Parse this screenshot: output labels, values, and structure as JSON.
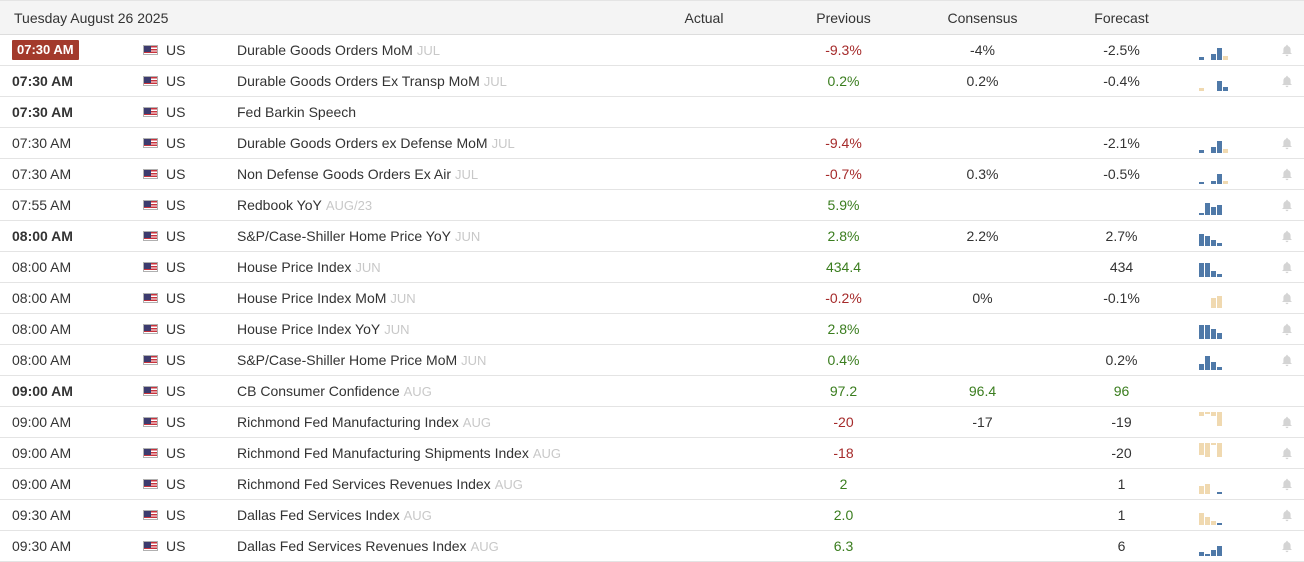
{
  "header": {
    "date": "Tuesday August 26 2025",
    "actual": "Actual",
    "previous": "Previous",
    "consensus": "Consensus",
    "forecast": "Forecast"
  },
  "colors": {
    "negative": "#a52a2a",
    "positive": "#3a7d1e",
    "bar_blue": "#4f79a8",
    "bar_tan": "#f0d9b0",
    "highlight_time": "#a33a2c"
  },
  "rows": [
    {
      "time": "07:30 AM",
      "style": "badge",
      "country": "US",
      "event": "Durable Goods Orders MoM",
      "ref": "JUL",
      "actual": "",
      "previous": "-9.3%",
      "prev_tone": "red",
      "consensus": "-4%",
      "forecast": "-2.5%",
      "bars": [
        {
          "h": 3,
          "c": "b"
        },
        {
          "h": 0,
          "c": "n"
        },
        {
          "h": 6,
          "c": "b"
        },
        {
          "h": 12,
          "c": "b"
        },
        {
          "h": 4,
          "c": "t"
        }
      ],
      "bell": true
    },
    {
      "time": "07:30 AM",
      "style": "bold",
      "country": "US",
      "event": "Durable Goods Orders Ex Transp MoM",
      "ref": "JUL",
      "actual": "",
      "previous": "0.2%",
      "prev_tone": "green",
      "consensus": "0.2%",
      "forecast": "-0.4%",
      "bars": [
        {
          "h": 3,
          "c": "t"
        },
        {
          "h": 0,
          "c": "n"
        },
        {
          "h": 0,
          "c": "n"
        },
        {
          "h": 10,
          "c": "b"
        },
        {
          "h": 4,
          "c": "b"
        }
      ],
      "bell": true
    },
    {
      "time": "07:30 AM",
      "style": "bold",
      "country": "US",
      "event": "Fed Barkin Speech",
      "ref": "",
      "actual": "",
      "previous": "",
      "prev_tone": "neutral",
      "consensus": "",
      "forecast": "",
      "bars": [],
      "bell": false
    },
    {
      "time": "07:30 AM",
      "style": "normal",
      "country": "US",
      "event": "Durable Goods Orders ex Defense MoM",
      "ref": "JUL",
      "actual": "",
      "previous": "-9.4%",
      "prev_tone": "red",
      "consensus": "",
      "forecast": "-2.1%",
      "bars": [
        {
          "h": 3,
          "c": "b"
        },
        {
          "h": 0,
          "c": "n"
        },
        {
          "h": 6,
          "c": "b"
        },
        {
          "h": 12,
          "c": "b"
        },
        {
          "h": 4,
          "c": "t"
        }
      ],
      "bell": true
    },
    {
      "time": "07:30 AM",
      "style": "normal",
      "country": "US",
      "event": "Non Defense Goods Orders Ex Air",
      "ref": "JUL",
      "actual": "",
      "previous": "-0.7%",
      "prev_tone": "red",
      "consensus": "0.3%",
      "forecast": "-0.5%",
      "bars": [
        {
          "h": 2,
          "c": "b"
        },
        {
          "h": 0,
          "c": "n"
        },
        {
          "h": 3,
          "c": "b"
        },
        {
          "h": 10,
          "c": "b"
        },
        {
          "h": 3,
          "c": "t"
        }
      ],
      "bell": true
    },
    {
      "time": "07:55 AM",
      "style": "normal",
      "country": "US",
      "event": "Redbook YoY",
      "ref": "AUG/23",
      "actual": "",
      "previous": "5.9%",
      "prev_tone": "green",
      "consensus": "",
      "forecast": "",
      "bars": [
        {
          "h": 2,
          "c": "b"
        },
        {
          "h": 12,
          "c": "b"
        },
        {
          "h": 8,
          "c": "b"
        },
        {
          "h": 10,
          "c": "b"
        }
      ],
      "bell": true
    },
    {
      "time": "08:00 AM",
      "style": "bold",
      "country": "US",
      "event": "S&P/Case-Shiller Home Price YoY",
      "ref": "JUN",
      "actual": "",
      "previous": "2.8%",
      "prev_tone": "green",
      "consensus": "2.2%",
      "forecast": "2.7%",
      "bars": [
        {
          "h": 12,
          "c": "b"
        },
        {
          "h": 10,
          "c": "b"
        },
        {
          "h": 6,
          "c": "b"
        },
        {
          "h": 3,
          "c": "b"
        }
      ],
      "bell": true
    },
    {
      "time": "08:00 AM",
      "style": "normal",
      "country": "US",
      "event": "House Price Index",
      "ref": "JUN",
      "actual": "",
      "previous": "434.4",
      "prev_tone": "green",
      "consensus": "",
      "forecast": "434",
      "bars": [
        {
          "h": 14,
          "c": "b"
        },
        {
          "h": 14,
          "c": "b"
        },
        {
          "h": 6,
          "c": "b"
        },
        {
          "h": 3,
          "c": "b"
        }
      ],
      "bell": true
    },
    {
      "time": "08:00 AM",
      "style": "normal",
      "country": "US",
      "event": "House Price Index MoM",
      "ref": "JUN",
      "actual": "",
      "previous": "-0.2%",
      "prev_tone": "red",
      "consensus": "0%",
      "forecast": "-0.1%",
      "bars": [
        {
          "h": 0,
          "c": "n"
        },
        {
          "h": 0,
          "c": "n"
        },
        {
          "h": 10,
          "c": "t"
        },
        {
          "h": 12,
          "c": "t"
        }
      ],
      "bell": true
    },
    {
      "time": "08:00 AM",
      "style": "normal",
      "country": "US",
      "event": "House Price Index YoY",
      "ref": "JUN",
      "actual": "",
      "previous": "2.8%",
      "prev_tone": "green",
      "consensus": "",
      "forecast": "",
      "bars": [
        {
          "h": 14,
          "c": "b"
        },
        {
          "h": 14,
          "c": "b"
        },
        {
          "h": 10,
          "c": "b"
        },
        {
          "h": 6,
          "c": "b"
        }
      ],
      "bell": true
    },
    {
      "time": "08:00 AM",
      "style": "normal",
      "country": "US",
      "event": "S&P/Case-Shiller Home Price MoM",
      "ref": "JUN",
      "actual": "",
      "previous": "0.4%",
      "prev_tone": "green",
      "consensus": "",
      "forecast": "0.2%",
      "bars": [
        {
          "h": 6,
          "c": "b"
        },
        {
          "h": 14,
          "c": "b"
        },
        {
          "h": 8,
          "c": "b"
        },
        {
          "h": 3,
          "c": "b"
        }
      ],
      "bell": true
    },
    {
      "time": "09:00 AM",
      "style": "bold",
      "country": "US",
      "event": "CB Consumer Confidence",
      "ref": "AUG",
      "actual": "",
      "previous": "97.2",
      "prev_tone": "green",
      "consensus": "96.4",
      "forecast": "96",
      "cons_tone": "green",
      "fore_tone": "green",
      "bars": [],
      "bell": false
    },
    {
      "time": "09:00 AM",
      "style": "normal",
      "country": "US",
      "event": "Richmond Fed Manufacturing Index",
      "ref": "AUG",
      "actual": "",
      "previous": "-20",
      "prev_tone": "red",
      "consensus": "-17",
      "forecast": "-19",
      "bars": [
        {
          "h": 4,
          "c": "t"
        },
        {
          "h": 2,
          "c": "t"
        },
        {
          "h": 4,
          "c": "t"
        },
        {
          "h": 14,
          "c": "t"
        }
      ],
      "bars_top": true,
      "bell": true
    },
    {
      "time": "09:00 AM",
      "style": "normal",
      "country": "US",
      "event": "Richmond Fed Manufacturing Shipments Index",
      "ref": "AUG",
      "actual": "",
      "previous": "-18",
      "prev_tone": "red",
      "consensus": "",
      "forecast": "-20",
      "bars": [
        {
          "h": 12,
          "c": "t"
        },
        {
          "h": 14,
          "c": "t"
        },
        {
          "h": 2,
          "c": "t"
        },
        {
          "h": 14,
          "c": "t"
        }
      ],
      "bars_top": true,
      "bell": true
    },
    {
      "time": "09:00 AM",
      "style": "normal",
      "country": "US",
      "event": "Richmond Fed Services Revenues Index",
      "ref": "AUG",
      "actual": "",
      "previous": "2",
      "prev_tone": "green",
      "consensus": "",
      "forecast": "1",
      "bars": [
        {
          "h": 8,
          "c": "t"
        },
        {
          "h": 10,
          "c": "t"
        },
        {
          "h": 0,
          "c": "n"
        },
        {
          "h": 2,
          "c": "b"
        }
      ],
      "bell": true
    },
    {
      "time": "09:30 AM",
      "style": "normal",
      "country": "US",
      "event": "Dallas Fed Services Index",
      "ref": "AUG",
      "actual": "",
      "previous": "2.0",
      "prev_tone": "green",
      "consensus": "",
      "forecast": "1",
      "bars": [
        {
          "h": 12,
          "c": "t"
        },
        {
          "h": 8,
          "c": "t"
        },
        {
          "h": 4,
          "c": "t"
        },
        {
          "h": 2,
          "c": "b"
        }
      ],
      "bell": true
    },
    {
      "time": "09:30 AM",
      "style": "normal",
      "country": "US",
      "event": "Dallas Fed Services Revenues Index",
      "ref": "AUG",
      "actual": "",
      "previous": "6.3",
      "prev_tone": "green",
      "consensus": "",
      "forecast": "6",
      "bars": [
        {
          "h": 4,
          "c": "b"
        },
        {
          "h": 2,
          "c": "b"
        },
        {
          "h": 6,
          "c": "b"
        },
        {
          "h": 10,
          "c": "b"
        }
      ],
      "bell": true
    }
  ]
}
